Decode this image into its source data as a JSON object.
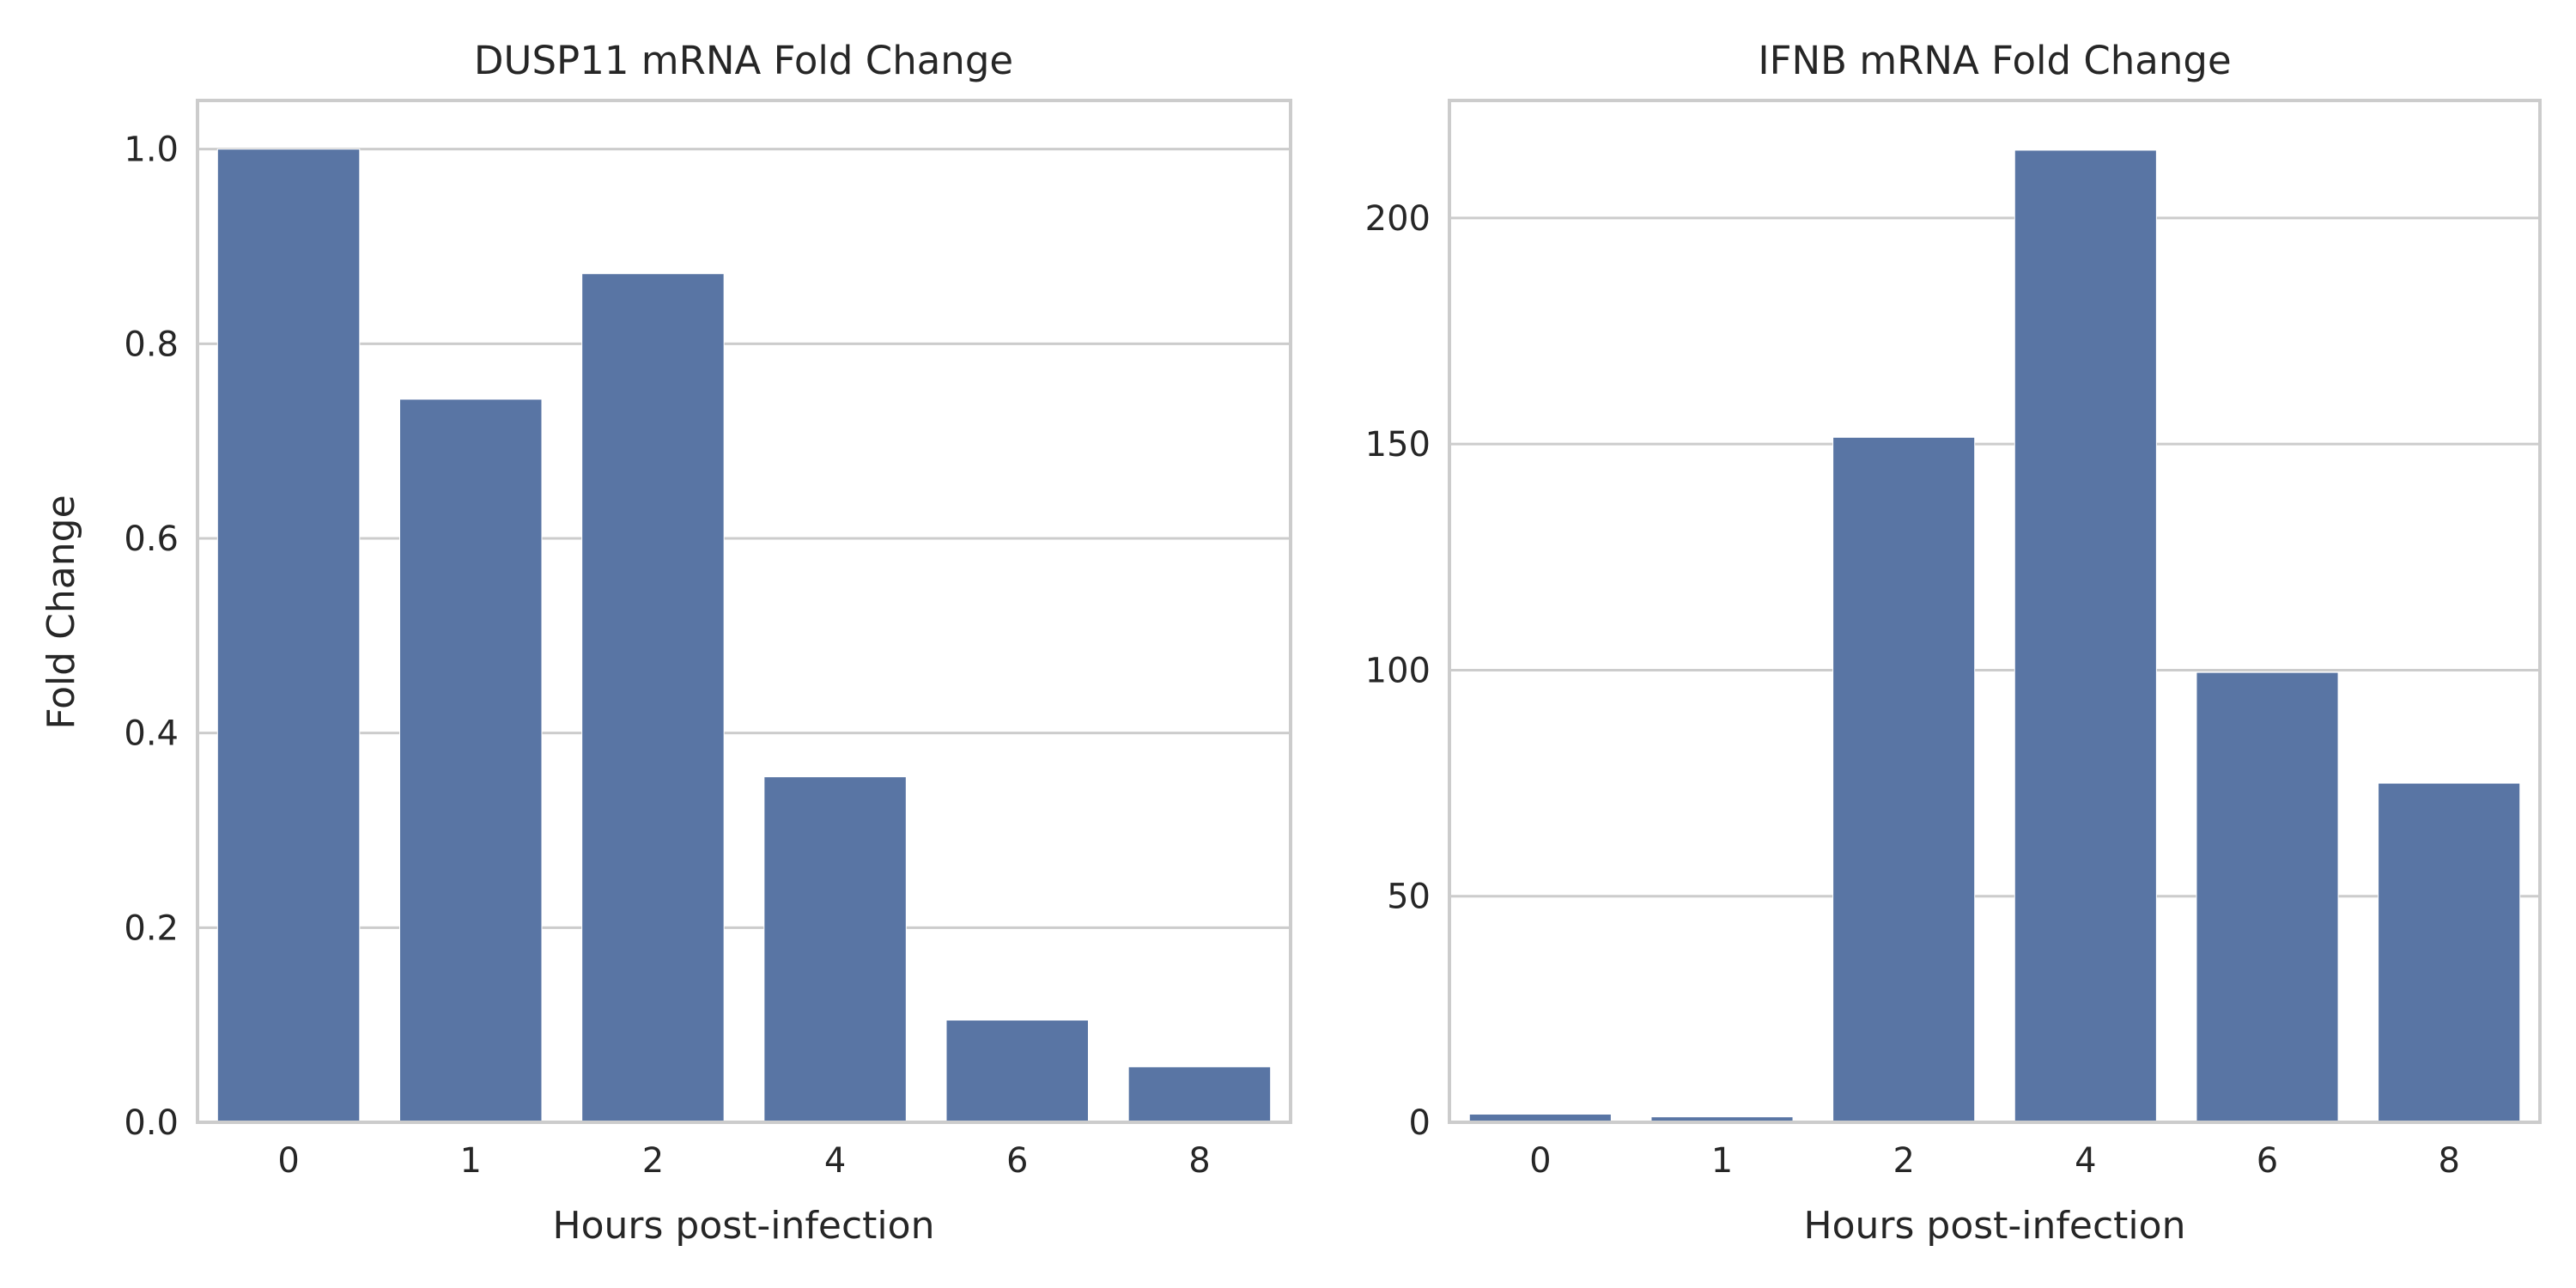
{
  "chart_data": [
    {
      "type": "bar",
      "title": "DUSP11 mRNA Fold Change",
      "xlabel": "Hours post-infection",
      "ylabel": "Fold Change",
      "categories": [
        "0",
        "1",
        "2",
        "4",
        "6",
        "8"
      ],
      "values": [
        1.0,
        0.743,
        0.872,
        0.355,
        0.105,
        0.057
      ],
      "ylim": [
        0,
        1.05
      ],
      "yticks": [
        0.0,
        0.2,
        0.4,
        0.6,
        0.8,
        1.0
      ],
      "ytick_labels": [
        "0.0",
        "0.2",
        "0.4",
        "0.6",
        "0.8",
        "1.0"
      ],
      "grid": true,
      "bar_color": "#5975a4"
    },
    {
      "type": "bar",
      "title": "IFNB mRNA Fold Change",
      "xlabel": "Hours post-infection",
      "ylabel": "",
      "categories": [
        "0",
        "1",
        "2",
        "4",
        "6",
        "8"
      ],
      "values": [
        1.8,
        1.2,
        151.5,
        215.0,
        99.5,
        75.0
      ],
      "ylim": [
        0,
        226
      ],
      "yticks": [
        0,
        50,
        100,
        150,
        200
      ],
      "ytick_labels": [
        "0",
        "50",
        "100",
        "150",
        "200"
      ],
      "grid": true,
      "bar_color": "#5975a4"
    }
  ],
  "style": {
    "grid_color": "#cccccc",
    "spine_color": "#cccccc",
    "text_color": "#262626",
    "background": "#ffffff"
  }
}
